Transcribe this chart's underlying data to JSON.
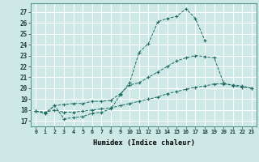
{
  "xlabel": "Humidex (Indice chaleur)",
  "ylabel": "",
  "bg_color": "#cde8e5",
  "grid_color": "#b0d8d4",
  "line_color": "#1e6b65",
  "xlim": [
    -0.5,
    23.5
  ],
  "ylim": [
    16.5,
    27.8
  ],
  "xticks": [
    0,
    1,
    2,
    3,
    4,
    5,
    6,
    7,
    8,
    9,
    10,
    11,
    12,
    13,
    14,
    15,
    16,
    17,
    18,
    19,
    20,
    21,
    22,
    23
  ],
  "yticks": [
    17,
    18,
    19,
    20,
    21,
    22,
    23,
    24,
    25,
    26,
    27
  ],
  "line1_x": [
    0,
    1,
    2,
    3,
    4,
    5,
    6,
    7,
    8,
    9,
    10,
    11,
    12,
    13,
    14,
    15,
    16,
    17,
    18
  ],
  "line1_y": [
    17.9,
    17.7,
    18.4,
    17.2,
    17.3,
    17.4,
    17.7,
    17.8,
    18.1,
    19.4,
    20.5,
    23.3,
    24.1,
    26.1,
    26.4,
    26.6,
    27.3,
    26.4,
    24.4
  ],
  "line2_x": [
    0,
    1,
    2,
    3,
    4,
    5,
    6,
    7,
    8,
    9,
    10,
    11,
    12,
    13,
    14,
    15,
    16,
    17,
    18,
    19,
    20,
    21,
    22,
    23
  ],
  "line2_y": [
    17.9,
    17.7,
    18.4,
    18.5,
    18.6,
    18.6,
    18.8,
    18.8,
    18.9,
    19.5,
    20.3,
    20.5,
    21.0,
    21.5,
    22.0,
    22.5,
    22.8,
    23.0,
    22.9,
    22.8,
    20.5,
    20.2,
    20.1,
    20.0
  ],
  "line3_x": [
    0,
    1,
    2,
    3,
    4,
    5,
    6,
    7,
    8,
    9,
    10,
    11,
    12,
    13,
    14,
    15,
    16,
    17,
    18,
    19,
    20,
    21,
    22,
    23
  ],
  "line3_y": [
    17.9,
    17.8,
    18.0,
    17.8,
    17.8,
    17.9,
    18.0,
    18.1,
    18.2,
    18.4,
    18.6,
    18.8,
    19.0,
    19.2,
    19.5,
    19.7,
    19.9,
    20.1,
    20.2,
    20.4,
    20.4,
    20.3,
    20.2,
    20.0
  ]
}
